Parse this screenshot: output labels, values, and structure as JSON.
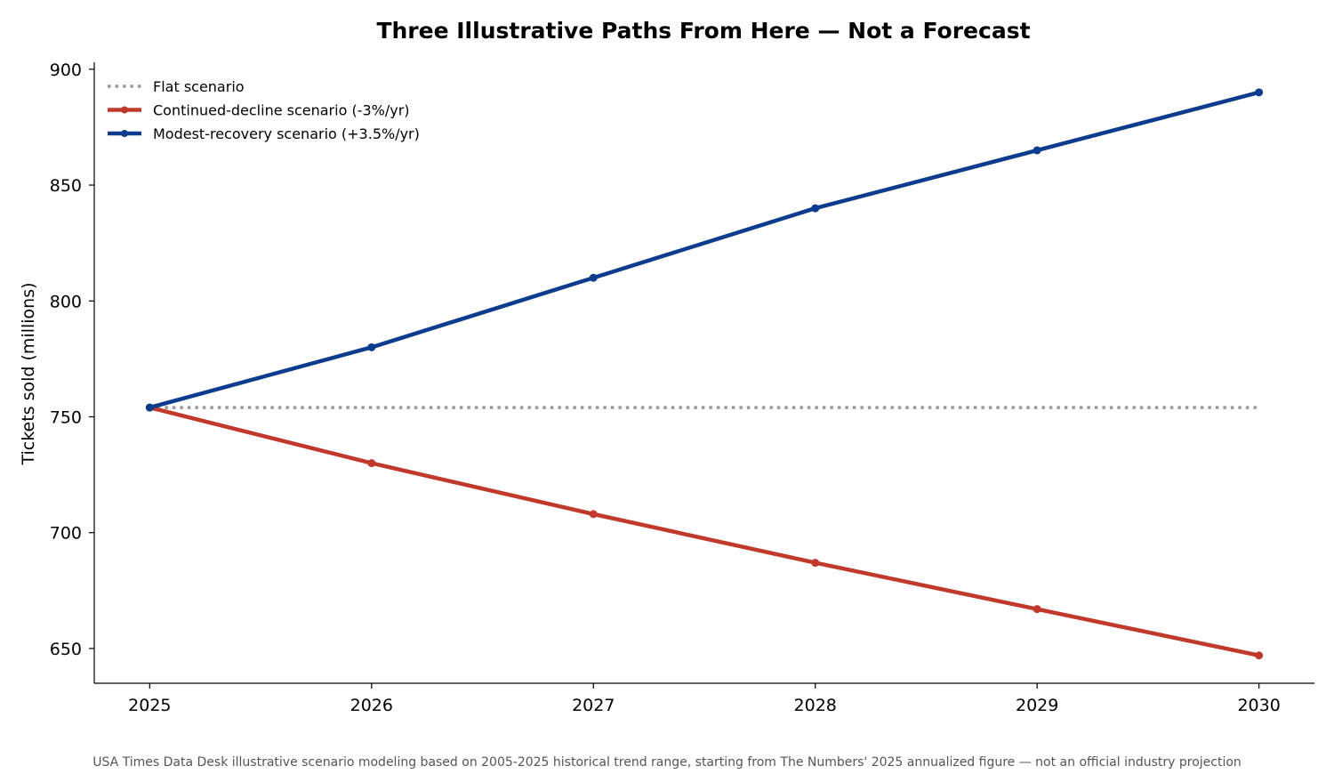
{
  "chart_data": {
    "type": "line",
    "title": "Three Illustrative Paths From Here — Not a Forecast",
    "xlabel": "",
    "ylabel": "Tickets sold (millions)",
    "x": [
      2025,
      2026,
      2027,
      2028,
      2029,
      2030
    ],
    "x_tick_labels": [
      "2025",
      "2026",
      "2027",
      "2028",
      "2029",
      "2030"
    ],
    "y_ticks": [
      650,
      700,
      750,
      800,
      850,
      900
    ],
    "y_tick_labels": [
      "650",
      "700",
      "750",
      "800",
      "850",
      "900"
    ],
    "xlim": [
      2024.75,
      2030.25
    ],
    "ylim": [
      635,
      903
    ],
    "grid": false,
    "legend_position": "top-left",
    "series": [
      {
        "name": "Flat scenario",
        "color": "#999999",
        "style": "dotted",
        "markers": false,
        "values": [
          754,
          754,
          754,
          754,
          754,
          754
        ]
      },
      {
        "name": "Continued-decline scenario (-3%/yr)",
        "color": "#c0392b",
        "style": "solid",
        "markers": true,
        "values": [
          754,
          730,
          708,
          687,
          667,
          647
        ]
      },
      {
        "name": "Modest-recovery scenario (+3.5%/yr)",
        "color": "#0d3b8e",
        "style": "solid",
        "markers": true,
        "values": [
          754,
          780,
          810,
          840,
          865,
          890
        ]
      }
    ],
    "footnote": "USA Times Data Desk illustrative scenario modeling based on 2005-2025 historical trend range, starting from The Numbers' 2025 annualized figure — not an official industry projection"
  }
}
